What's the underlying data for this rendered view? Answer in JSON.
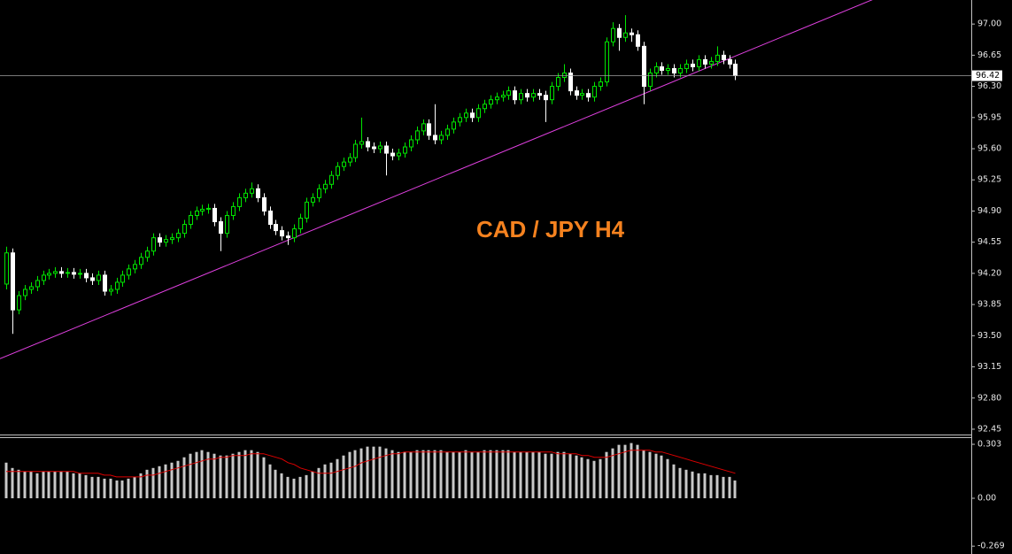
{
  "chart_data": [
    {
      "type": "candlestick",
      "title": "CAD / JPY H4",
      "up_color": "#00e600",
      "down_color": "#ffffff",
      "grid": false,
      "ylim": [
        92.4,
        97.27
      ],
      "yticks": [
        92.45,
        {
          "value": 92.8,
          "label": "92.80"
        },
        93.15,
        {
          "value": 93.5,
          "label": "93.50"
        },
        93.85,
        {
          "value": 94.2,
          "label": "94.20"
        },
        94.55,
        {
          "value": 94.9,
          "label": "94.90"
        },
        95.25,
        {
          "value": 95.6,
          "label": "95.60"
        },
        95.95,
        {
          "value": 96.3,
          "label": "96.30"
        },
        96.65,
        {
          "value": 97,
          "label": "97.00"
        }
      ],
      "last_price": 96.42,
      "last_price_color": "#a0a0a0",
      "trendline": [
        93.27,
        96.64
      ],
      "trendline_color": "#e040e0",
      "open": [
        94.08,
        94.43,
        93.79,
        93.95,
        94.02,
        94.05,
        94.12,
        94.18,
        94.2,
        94.22,
        94.2,
        94.21,
        94.19,
        94.2,
        94.15,
        94.12,
        94.18,
        94.0,
        94.02,
        94.1,
        94.18,
        94.25,
        94.3,
        94.38,
        94.45,
        94.6,
        94.55,
        94.58,
        94.6,
        94.65,
        94.75,
        94.85,
        94.9,
        94.92,
        94.93,
        94.78,
        94.65,
        94.85,
        94.95,
        95.05,
        95.1,
        95.15,
        95.05,
        94.9,
        94.75,
        94.68,
        94.62,
        94.6,
        94.7,
        94.82,
        95.0,
        95.05,
        95.15,
        95.2,
        95.3,
        95.4,
        95.45,
        95.5,
        95.65,
        95.68,
        95.62,
        95.6,
        95.63,
        95.55,
        95.52,
        95.55,
        95.62,
        95.7,
        95.8,
        95.88,
        95.75,
        95.7,
        95.75,
        95.82,
        95.9,
        95.95,
        96.0,
        95.95,
        96.05,
        96.1,
        96.15,
        96.18,
        96.2,
        96.25,
        96.15,
        96.22,
        96.18,
        96.22,
        96.2,
        96.15,
        96.3,
        96.4,
        96.45,
        96.25,
        96.2,
        96.22,
        96.18,
        96.3,
        96.35,
        96.8,
        96.95,
        96.85,
        96.9,
        96.88,
        96.75,
        96.3,
        96.45,
        96.52,
        96.48,
        96.5,
        96.45,
        96.5,
        96.55,
        96.52,
        96.6,
        96.55,
        96.58,
        96.65,
        96.6,
        96.55
      ],
      "high": [
        94.5,
        94.48,
        94.0,
        94.07,
        94.1,
        94.17,
        94.23,
        94.25,
        94.27,
        94.27,
        94.26,
        94.26,
        94.25,
        94.25,
        94.2,
        94.23,
        94.23,
        94.07,
        94.15,
        94.23,
        94.3,
        94.35,
        94.43,
        94.5,
        94.65,
        94.65,
        94.63,
        94.65,
        94.7,
        94.8,
        94.9,
        94.95,
        94.97,
        94.98,
        94.98,
        94.83,
        94.9,
        95.0,
        95.1,
        95.15,
        95.22,
        95.2,
        95.1,
        94.95,
        94.8,
        94.73,
        94.67,
        94.75,
        94.87,
        95.05,
        95.1,
        95.2,
        95.25,
        95.35,
        95.45,
        95.5,
        95.55,
        95.7,
        95.95,
        95.73,
        95.67,
        95.68,
        95.68,
        95.6,
        95.6,
        95.67,
        95.75,
        95.85,
        95.93,
        95.93,
        96.1,
        95.8,
        95.87,
        95.95,
        96.0,
        96.05,
        96.05,
        96.1,
        96.15,
        96.2,
        96.23,
        96.25,
        96.3,
        96.3,
        96.27,
        96.27,
        96.27,
        96.27,
        96.25,
        96.35,
        96.45,
        96.55,
        96.5,
        96.3,
        96.27,
        96.27,
        96.35,
        96.4,
        96.85,
        97.02,
        97.0,
        97.1,
        96.95,
        96.93,
        96.8,
        96.5,
        96.57,
        96.57,
        96.55,
        96.55,
        96.55,
        96.6,
        96.6,
        96.65,
        96.65,
        96.63,
        96.75,
        96.7,
        96.65,
        96.6
      ],
      "low": [
        94.02,
        93.52,
        93.74,
        93.9,
        93.97,
        94.0,
        94.07,
        94.13,
        94.15,
        94.15,
        94.15,
        94.14,
        94.14,
        94.1,
        94.07,
        94.07,
        93.95,
        93.95,
        93.97,
        94.05,
        94.13,
        94.2,
        94.25,
        94.33,
        94.4,
        94.5,
        94.5,
        94.53,
        94.55,
        94.6,
        94.7,
        94.8,
        94.85,
        94.87,
        94.73,
        94.45,
        94.6,
        94.8,
        94.9,
        95.0,
        95.05,
        95.0,
        94.85,
        94.7,
        94.63,
        94.57,
        94.52,
        94.55,
        94.65,
        94.77,
        94.95,
        95.0,
        95.1,
        95.15,
        95.25,
        95.35,
        95.4,
        95.45,
        95.6,
        95.57,
        95.55,
        95.55,
        95.3,
        95.47,
        95.47,
        95.5,
        95.57,
        95.65,
        95.75,
        95.7,
        95.65,
        95.65,
        95.7,
        95.77,
        95.85,
        95.9,
        95.9,
        95.9,
        96.0,
        96.05,
        96.1,
        96.13,
        96.15,
        96.1,
        96.1,
        96.13,
        96.13,
        96.15,
        95.9,
        96.1,
        96.25,
        96.35,
        96.2,
        96.15,
        96.15,
        96.13,
        96.13,
        96.25,
        96.3,
        96.75,
        96.7,
        96.8,
        96.8,
        96.7,
        96.1,
        96.25,
        96.4,
        96.43,
        96.43,
        96.4,
        96.4,
        96.45,
        96.47,
        96.47,
        96.5,
        96.5,
        96.53,
        96.55,
        96.5,
        96.37
      ],
      "close": [
        94.43,
        93.79,
        93.95,
        94.02,
        94.05,
        94.12,
        94.18,
        94.2,
        94.22,
        94.2,
        94.21,
        94.19,
        94.2,
        94.15,
        94.12,
        94.18,
        94.0,
        94.02,
        94.1,
        94.18,
        94.25,
        94.3,
        94.38,
        94.45,
        94.6,
        94.55,
        94.58,
        94.6,
        94.65,
        94.75,
        94.85,
        94.9,
        94.92,
        94.93,
        94.78,
        94.65,
        94.85,
        94.95,
        95.05,
        95.1,
        95.15,
        95.05,
        94.9,
        94.75,
        94.68,
        94.62,
        94.6,
        94.7,
        94.82,
        95.0,
        95.05,
        95.15,
        95.2,
        95.3,
        95.4,
        95.45,
        95.5,
        95.65,
        95.68,
        95.62,
        95.6,
        95.63,
        95.55,
        95.52,
        95.55,
        95.62,
        95.7,
        95.8,
        95.88,
        95.75,
        95.7,
        95.75,
        95.82,
        95.9,
        95.95,
        96.0,
        95.95,
        96.05,
        96.1,
        96.15,
        96.18,
        96.2,
        96.25,
        96.15,
        96.22,
        96.18,
        96.22,
        96.2,
        96.15,
        96.3,
        96.4,
        96.45,
        96.25,
        96.2,
        96.22,
        96.18,
        96.3,
        96.35,
        96.8,
        96.95,
        96.85,
        96.9,
        96.88,
        96.75,
        96.3,
        96.45,
        96.52,
        96.48,
        96.5,
        96.45,
        96.5,
        96.55,
        96.52,
        96.6,
        96.55,
        96.58,
        96.65,
        96.6,
        96.55,
        96.42
      ]
    },
    {
      "type": "bar",
      "color": "#c8c8c8",
      "ylim": [
        -0.313,
        0.338
      ],
      "yticks": [
        0.303,
        {
          "value": 0,
          "label": "0.00"
        },
        -0.269
      ],
      "values": [
        0.2,
        0.17,
        0.16,
        0.15,
        0.15,
        0.14,
        0.15,
        0.15,
        0.15,
        0.15,
        0.15,
        0.14,
        0.14,
        0.13,
        0.12,
        0.12,
        0.11,
        0.11,
        0.1,
        0.1,
        0.11,
        0.12,
        0.14,
        0.16,
        0.17,
        0.18,
        0.19,
        0.2,
        0.21,
        0.23,
        0.25,
        0.26,
        0.27,
        0.26,
        0.25,
        0.24,
        0.24,
        0.25,
        0.26,
        0.27,
        0.27,
        0.26,
        0.23,
        0.19,
        0.16,
        0.14,
        0.12,
        0.11,
        0.12,
        0.13,
        0.15,
        0.17,
        0.19,
        0.2,
        0.22,
        0.24,
        0.26,
        0.27,
        0.28,
        0.29,
        0.29,
        0.29,
        0.28,
        0.27,
        0.26,
        0.26,
        0.26,
        0.27,
        0.27,
        0.27,
        0.27,
        0.27,
        0.26,
        0.26,
        0.26,
        0.27,
        0.26,
        0.26,
        0.27,
        0.27,
        0.27,
        0.27,
        0.27,
        0.26,
        0.26,
        0.26,
        0.26,
        0.26,
        0.25,
        0.25,
        0.26,
        0.26,
        0.25,
        0.24,
        0.23,
        0.22,
        0.21,
        0.22,
        0.26,
        0.28,
        0.3,
        0.3,
        0.31,
        0.3,
        0.27,
        0.26,
        0.25,
        0.24,
        0.22,
        0.19,
        0.17,
        0.16,
        0.15,
        0.14,
        0.14,
        0.13,
        0.13,
        0.12,
        0.12,
        0.1
      ],
      "signal": {
        "color": "#e00000",
        "values": [
          0.15,
          0.15,
          0.15,
          0.15,
          0.15,
          0.15,
          0.15,
          0.15,
          0.15,
          0.15,
          0.15,
          0.15,
          0.14,
          0.14,
          0.14,
          0.14,
          0.13,
          0.13,
          0.12,
          0.12,
          0.12,
          0.12,
          0.12,
          0.13,
          0.13,
          0.14,
          0.15,
          0.16,
          0.17,
          0.18,
          0.19,
          0.2,
          0.21,
          0.22,
          0.22,
          0.23,
          0.23,
          0.24,
          0.24,
          0.24,
          0.25,
          0.25,
          0.25,
          0.24,
          0.23,
          0.22,
          0.2,
          0.19,
          0.17,
          0.16,
          0.15,
          0.14,
          0.14,
          0.14,
          0.15,
          0.16,
          0.17,
          0.18,
          0.2,
          0.21,
          0.22,
          0.23,
          0.24,
          0.25,
          0.25,
          0.26,
          0.26,
          0.26,
          0.26,
          0.26,
          0.26,
          0.26,
          0.26,
          0.26,
          0.26,
          0.26,
          0.26,
          0.26,
          0.26,
          0.26,
          0.26,
          0.26,
          0.26,
          0.26,
          0.26,
          0.26,
          0.26,
          0.26,
          0.26,
          0.26,
          0.25,
          0.25,
          0.25,
          0.25,
          0.24,
          0.24,
          0.23,
          0.23,
          0.23,
          0.24,
          0.25,
          0.26,
          0.27,
          0.27,
          0.27,
          0.27,
          0.26,
          0.26,
          0.25,
          0.24,
          0.23,
          0.22,
          0.21,
          0.2,
          0.19,
          0.18,
          0.17,
          0.16,
          0.15,
          0.14
        ]
      }
    }
  ]
}
